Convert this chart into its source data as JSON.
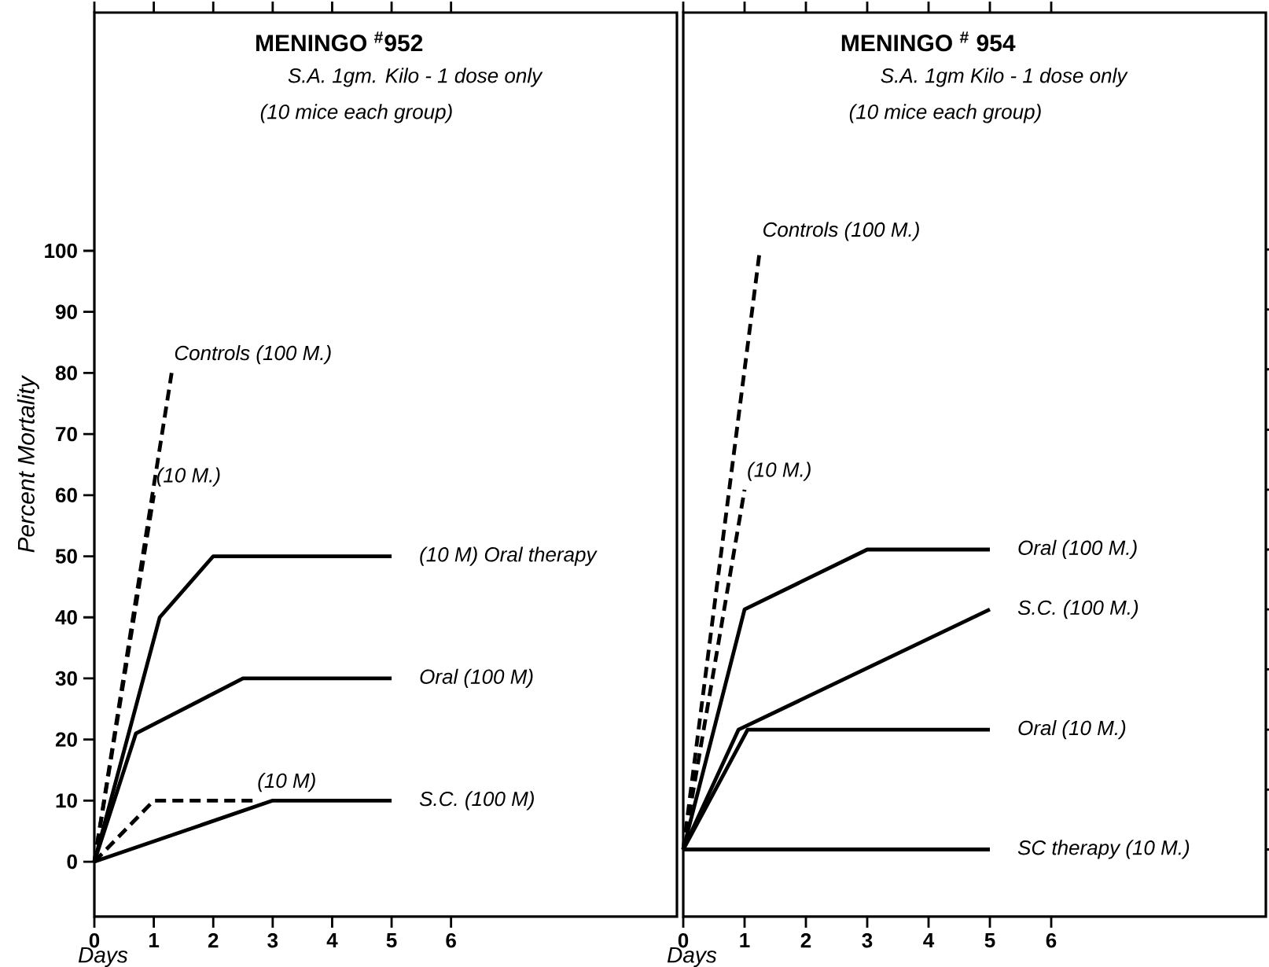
{
  "chart_data": [
    {
      "type": "line",
      "title": "MENINGO $^{#}$952",
      "subtitle": "S.A. 1gm. Kilo - 1 dose only",
      "annotations": [
        "(10 mice each group)"
      ],
      "xlabel": "Days",
      "ylabel": "Percent Mortality",
      "marker": "none",
      "xlim": [
        0,
        9.8
      ],
      "ylim": [
        -9,
        139
      ],
      "xticks": [
        0,
        1,
        2,
        3,
        4,
        5,
        6
      ],
      "yticks": [
        0,
        10,
        20,
        30,
        40,
        50,
        60,
        70,
        80,
        90,
        100
      ],
      "series": [
        {
          "name": "Controls (100 M.)",
          "color": "#000000",
          "line_style": "dashed",
          "x": [
            0,
            1.3
          ],
          "values": [
            0,
            80
          ]
        },
        {
          "name": "(10 M.)",
          "color": "#000000",
          "line_style": "dashed",
          "x": [
            0,
            1
          ],
          "values": [
            0,
            60
          ]
        },
        {
          "name": "(10 M) Oral therapy",
          "color": "#000000",
          "line_style": "solid",
          "x": [
            0,
            1.1,
            2,
            5
          ],
          "values": [
            0,
            40,
            50,
            50
          ]
        },
        {
          "name": "Oral (100 M)",
          "color": "#000000",
          "line_style": "solid",
          "x": [
            0,
            0.7,
            2.5,
            5
          ],
          "values": [
            0,
            21,
            30,
            30
          ]
        },
        {
          "name": "(10 M)",
          "color": "#000000",
          "line_style": "dashed",
          "x": [
            0,
            1,
            2.7
          ],
          "values": [
            0,
            10,
            10
          ]
        },
        {
          "name": "S.C. (100 M)",
          "color": "#000000",
          "line_style": "solid",
          "x": [
            0,
            3,
            5
          ],
          "values": [
            0,
            10,
            10
          ]
        }
      ]
    },
    {
      "type": "line",
      "title": "MENINGO $^{#}$ 954",
      "subtitle": "S.A. 1gm Kilo - 1 dose only",
      "annotations": [
        "(10 mice each group)"
      ],
      "xlabel": "Days",
      "marker": "none",
      "tick_labels": "x",
      "xlim": [
        0,
        9.5
      ],
      "ylim": [
        -9,
        139
      ],
      "xticks": [
        0,
        1,
        2,
        3,
        4,
        5,
        6
      ],
      "yticks": [
        {
          "value": 2,
          "label": null
        },
        {
          "value": 11.8,
          "label": null
        },
        {
          "value": 21.6,
          "label": null
        },
        {
          "value": 31.5,
          "label": null
        },
        {
          "value": 41.3,
          "label": null
        },
        {
          "value": 51.1,
          "label": null
        },
        {
          "value": 60.9,
          "label": null
        },
        {
          "value": 70.7,
          "label": null
        },
        {
          "value": 80.6,
          "label": null
        },
        {
          "value": 90.4,
          "label": null
        },
        {
          "value": 100.2,
          "label": null
        }
      ],
      "series": [
        {
          "name": "Controls (100 M.)",
          "color": "#000000",
          "line_style": "dashed",
          "x": [
            0,
            1.25
          ],
          "values": [
            2,
            100.2
          ]
        },
        {
          "name": "(10 M.)",
          "color": "#000000",
          "line_style": "dashed",
          "x": [
            0,
            1
          ],
          "values": [
            2,
            60.9
          ]
        },
        {
          "name": "Oral (100 M.)",
          "color": "#000000",
          "line_style": "solid",
          "x": [
            0,
            1,
            3,
            5
          ],
          "values": [
            2,
            41.3,
            51.1,
            51.1
          ]
        },
        {
          "name": "S.C. (100 M.)",
          "color": "#000000",
          "line_style": "solid",
          "x": [
            0,
            0.9,
            5
          ],
          "values": [
            2,
            21.6,
            41.3
          ]
        },
        {
          "name": "Oral (10 M.)",
          "color": "#000000",
          "line_style": "solid",
          "x": [
            0,
            1.05,
            5
          ],
          "values": [
            2,
            21.6,
            21.6
          ]
        },
        {
          "name": "SC therapy (10 M.)",
          "color": "#000000",
          "line_style": "solid",
          "x": [
            0,
            5
          ],
          "values": [
            2,
            2
          ]
        }
      ]
    }
  ]
}
